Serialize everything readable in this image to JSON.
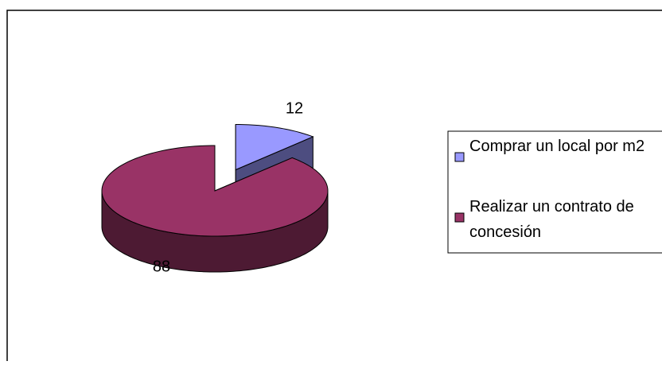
{
  "chart_data": {
    "type": "pie3d",
    "categories": [
      "Comprar un local por m2",
      "Realizar un contrato de concesión"
    ],
    "values": [
      12,
      88
    ],
    "colors": [
      "#9999ff",
      "#993366"
    ],
    "legend": "right"
  }
}
